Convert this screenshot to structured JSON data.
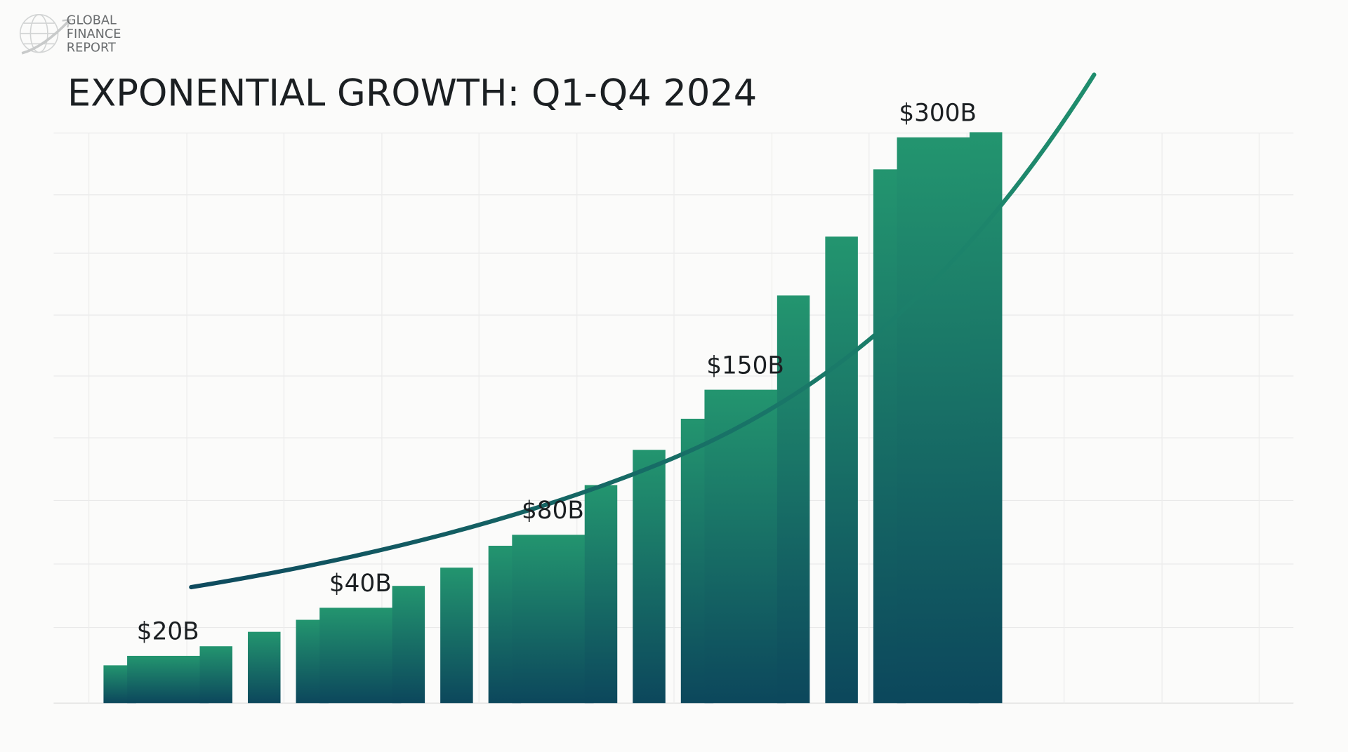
{
  "logo": {
    "line1": "GLOBAL",
    "line2": "FINANCE",
    "line3": "REPORT",
    "icon": "globe-with-arrow-icon"
  },
  "chart_data": {
    "type": "bar",
    "title": "EXPONENTIAL GROWTH: Q1-Q4 2024",
    "xlabel": "",
    "ylabel": "",
    "grid": true,
    "legend": "none",
    "trend_line": "exponential curve",
    "colors": {
      "bar_top": "#23956f",
      "bar_bottom": "#0c475c",
      "curve_start": "#0e4a5e",
      "curve_end": "#1f8d6d"
    },
    "values": [
      16,
      20,
      24,
      30,
      35,
      40,
      52,
      62,
      74,
      80,
      104,
      121,
      136,
      150,
      206,
      241,
      281,
      300,
      303
    ],
    "data_labels": [
      {
        "index": 1,
        "text": "$20B"
      },
      {
        "index": 5,
        "text": "$40B"
      },
      {
        "index": 9,
        "text": "$80B"
      },
      {
        "index": 13,
        "text": "$150B"
      },
      {
        "index": 17,
        "text": "$300B"
      }
    ]
  }
}
